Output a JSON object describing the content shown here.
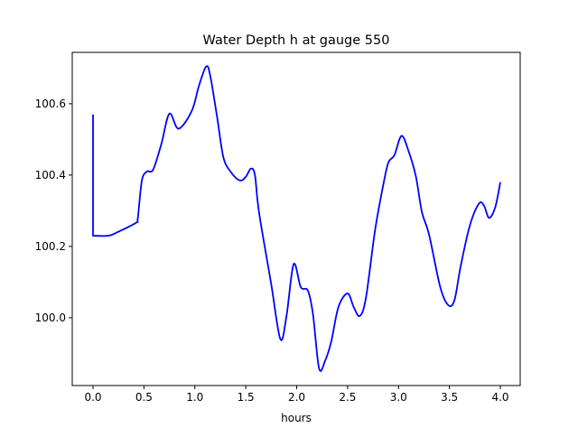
{
  "chart_data": {
    "type": "line",
    "title": "Water Depth h at gauge 550",
    "xlabel": "hours",
    "ylabel": "",
    "xlim": [
      -0.204,
      4.195
    ],
    "ylim": [
      99.81,
      100.744
    ],
    "xticks": [
      0.0,
      0.5,
      1.0,
      1.5,
      2.0,
      2.5,
      3.0,
      3.5,
      4.0
    ],
    "xtick_labels": [
      "0.0",
      "0.5",
      "1.0",
      "1.5",
      "2.0",
      "2.5",
      "3.0",
      "3.5",
      "4.0"
    ],
    "yticks": [
      100.0,
      100.2,
      100.4,
      100.6
    ],
    "ytick_labels": [
      "100.0",
      "100.2",
      "100.4",
      "100.6"
    ],
    "grid": false,
    "series": [
      {
        "name": "h",
        "color": "#0000ff",
        "x": [
          0,
          0,
          0.15,
          0.24,
          0.42,
          0.44,
          0.48,
          0.53,
          0.59,
          0.67,
          0.75,
          0.84,
          0.97,
          1.04,
          1.11,
          1.15,
          1.22,
          1.28,
          1.35,
          1.44,
          1.5,
          1.55,
          1.59,
          1.63,
          1.75,
          1.84,
          1.9,
          1.97,
          2.04,
          2.11,
          2.16,
          2.22,
          2.28,
          2.34,
          2.41,
          2.5,
          2.56,
          2.62,
          2.68,
          2.77,
          2.85,
          2.9,
          2.96,
          3.03,
          3.1,
          3.17,
          3.23,
          3.3,
          3.41,
          3.49,
          3.55,
          3.61,
          3.7,
          3.79,
          3.84,
          3.89,
          3.95,
          4.0
        ],
        "y": [
          100.57,
          100.23,
          100.23,
          100.24,
          100.266,
          100.28,
          100.385,
          100.41,
          100.415,
          100.486,
          100.572,
          100.53,
          100.58,
          100.65,
          100.704,
          100.68,
          100.56,
          100.45,
          100.41,
          100.385,
          100.395,
          100.418,
          100.4,
          100.296,
          100.094,
          99.94,
          100.005,
          100.15,
          100.086,
          100.076,
          100.01,
          99.858,
          99.88,
          99.934,
          100.03,
          100.068,
          100.03,
          100.005,
          100.056,
          100.246,
          100.372,
          100.435,
          100.456,
          100.51,
          100.466,
          100.397,
          100.296,
          100.233,
          100.086,
          100.035,
          100.05,
          100.144,
          100.258,
          100.32,
          100.314,
          100.28,
          100.31,
          100.38
        ]
      }
    ]
  }
}
